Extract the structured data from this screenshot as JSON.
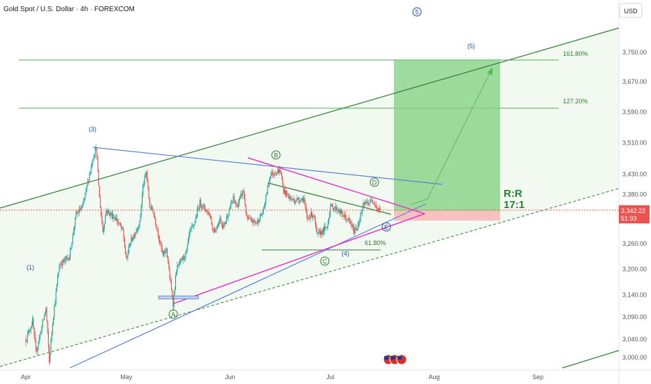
{
  "header": {
    "symbol_title": "Gold Spot / U.S. Dollar · 4h · FOREXCOM",
    "currency": "USD"
  },
  "colors": {
    "up_candle": "#26a69a",
    "down_candle": "#ef5350",
    "channel": "#2e7d32",
    "fib_line": "#4caf50",
    "blue_line": "#5b7fd6",
    "magenta_line": "#e838c8",
    "target_box": "#7fcf7f",
    "stop_box": "#f6b3b3",
    "price_label": "#ef5350",
    "wave_label": "#1e50a0",
    "abc_label": "#2e7d32"
  },
  "chart_data": {
    "type": "candlestick",
    "title": "Gold Spot / U.S. Dollar · 4h · FOREXCOM",
    "x_ticks": [
      "Apr",
      "May",
      "Jun",
      "Jul",
      "Aug",
      "Sep"
    ],
    "y_ticks": [
      "3,750.00",
      "3,670.00",
      "3,590.00",
      "3,510.00",
      "3,430.00",
      "3,380.00",
      "3,260.00",
      "3,200.00",
      "3,140.00",
      "3,090.00",
      "3,040.00",
      "3,000.00"
    ],
    "ylim": [
      2985,
      3830
    ],
    "log_scale": true,
    "current_price": "3,342.22",
    "countdown": "51:33",
    "price_path": [
      [
        "Apr 01",
        3040
      ],
      [
        "Apr 03",
        3080
      ],
      [
        "Apr 04",
        3010
      ],
      [
        "Apr 07",
        3110
      ],
      [
        "Apr 08",
        2990
      ],
      [
        "Apr 09",
        3080
      ],
      [
        "Apr 11",
        3210
      ],
      [
        "Apr 14",
        3230
      ],
      [
        "Apr 16",
        3330
      ],
      [
        "Apr 18",
        3350
      ],
      [
        "Apr 21",
        3470
      ],
      [
        "Apr 22",
        3500
      ],
      [
        "Apr 23",
        3370
      ],
      [
        "Apr 24",
        3290
      ],
      [
        "Apr 25",
        3340
      ],
      [
        "Apr 28",
        3320
      ],
      [
        "Apr 30",
        3290
      ],
      [
        "May 01",
        3220
      ],
      [
        "May 02",
        3260
      ],
      [
        "May 05",
        3310
      ],
      [
        "May 06",
        3400
      ],
      [
        "May 07",
        3435
      ],
      [
        "May 08",
        3350
      ],
      [
        "May 09",
        3340
      ],
      [
        "May 12",
        3230
      ],
      [
        "May 13",
        3250
      ],
      [
        "May 14",
        3180
      ],
      [
        "May 15",
        3120
      ],
      [
        "May 16",
        3200
      ],
      [
        "May 19",
        3240
      ],
      [
        "May 20",
        3290
      ],
      [
        "May 21",
        3300
      ],
      [
        "May 22",
        3330
      ],
      [
        "May 23",
        3360
      ],
      [
        "May 26",
        3330
      ],
      [
        "May 27",
        3290
      ],
      [
        "May 28",
        3300
      ],
      [
        "May 29",
        3320
      ],
      [
        "May 30",
        3300
      ],
      [
        "Jun 02",
        3370
      ],
      [
        "Jun 03",
        3350
      ],
      [
        "Jun 05",
        3390
      ],
      [
        "Jun 06",
        3320
      ],
      [
        "Jun 09",
        3310
      ],
      [
        "Jun 11",
        3340
      ],
      [
        "Jun 13",
        3430
      ],
      [
        "Jun 16",
        3440
      ],
      [
        "Jun 17",
        3390
      ],
      [
        "Jun 19",
        3370
      ],
      [
        "Jun 20",
        3365
      ],
      [
        "Jun 23",
        3370
      ],
      [
        "Jun 24",
        3320
      ],
      [
        "Jun 25",
        3330
      ],
      [
        "Jun 26",
        3330
      ],
      [
        "Jun 27",
        3280
      ],
      [
        "Jun 30",
        3300
      ],
      [
        "Jul 01",
        3350
      ],
      [
        "Jul 03",
        3345
      ],
      [
        "Jul 04",
        3335
      ],
      [
        "Jul 07",
        3310
      ],
      [
        "Jul 08",
        3290
      ],
      [
        "Jul 09",
        3300
      ],
      [
        "Jul 11",
        3355
      ],
      [
        "Jul 14",
        3365
      ],
      [
        "Jul 15",
        3345
      ],
      [
        "Jul 16",
        3342
      ]
    ],
    "annotations": {
      "fib_161": "161.80%",
      "fib_127": "127.20%",
      "fib_618": "61.80%",
      "rr_label": "R:R",
      "rr_value": "17:1",
      "wave_1": "(1)",
      "wave_3": "(3)",
      "wave_4": "(4)",
      "wave_5": "(5)",
      "wave_5_circled": "5",
      "wave_a": "A",
      "wave_b": "B",
      "wave_c": "C",
      "wave_d": "D",
      "wave_e": "E"
    }
  }
}
